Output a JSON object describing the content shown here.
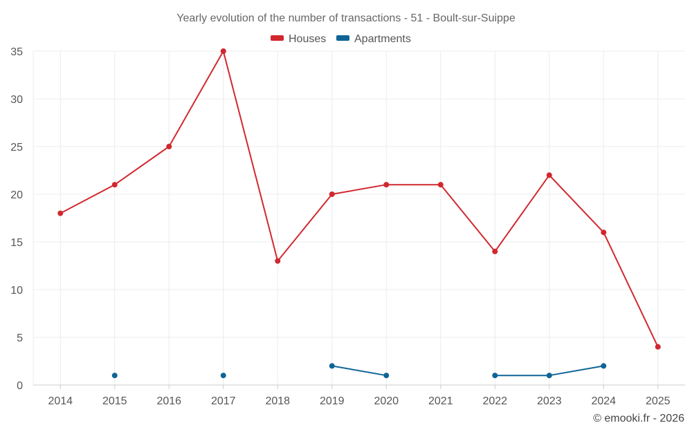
{
  "chart_data": {
    "type": "line",
    "title": "Yearly evolution of the number of transactions - 51 - Boult-sur-Suippe",
    "xlabel": "",
    "ylabel": "",
    "categories": [
      "2014",
      "2015",
      "2016",
      "2017",
      "2018",
      "2019",
      "2020",
      "2021",
      "2022",
      "2023",
      "2024",
      "2025"
    ],
    "ylim": [
      0,
      35
    ],
    "yticks": [
      0,
      5,
      10,
      15,
      20,
      25,
      30,
      35
    ],
    "grid": true,
    "legend_position": "top-center",
    "series": [
      {
        "name": "Houses",
        "color": "#d0282e",
        "values": [
          18,
          21,
          25,
          35,
          13,
          20,
          21,
          21,
          14,
          22,
          16,
          4
        ]
      },
      {
        "name": "Apartments",
        "color": "#0f6496",
        "values": [
          null,
          1,
          null,
          1,
          null,
          2,
          1,
          null,
          1,
          1,
          2,
          null
        ]
      }
    ]
  },
  "credit": "© emooki.fr - 2026"
}
